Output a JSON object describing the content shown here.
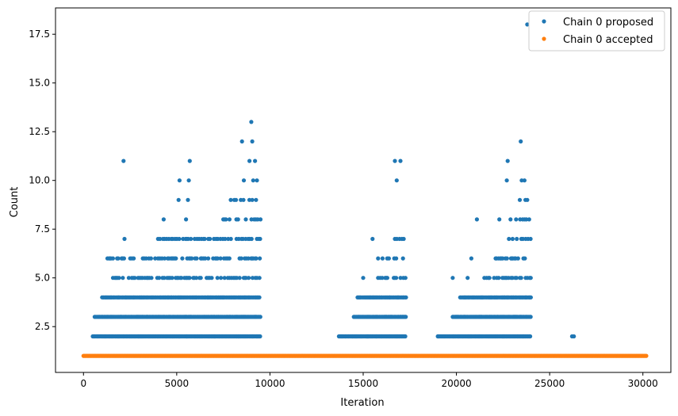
{
  "chart_data": {
    "type": "scatter",
    "xlabel": "Iteration",
    "ylabel": "Count",
    "xlim": [
      -1500,
      31500
    ],
    "ylim": [
      0.15,
      18.85
    ],
    "xticks": [
      0,
      5000,
      10000,
      15000,
      20000,
      25000,
      30000
    ],
    "yticks": [
      2.5,
      5.0,
      7.5,
      10.0,
      12.5,
      15.0,
      17.5
    ],
    "legend_position": "top-right",
    "series": [
      {
        "name": "Chain 0 proposed",
        "color": "#1f77b4",
        "segments": [
          {
            "x0": 500,
            "x1": 9500,
            "levels": [
              {
                "y": 2,
                "x0": 500,
                "x1": 9500
              },
              {
                "y": 3,
                "x0": 600,
                "x1": 9500
              },
              {
                "y": 4,
                "x0": 1000,
                "x1": 9500
              },
              {
                "y": 5,
                "x0": 1500,
                "x1": 9500
              },
              {
                "y": 6,
                "x0": 1200,
                "x1": 9500
              },
              {
                "y": 7,
                "x0": 4000,
                "x1": 9500
              },
              {
                "y": 8,
                "x0": 7500,
                "x1": 9500
              },
              {
                "y": 9,
                "x0": 7900,
                "x1": 9400
              }
            ]
          },
          {
            "x0": 13700,
            "x1": 17300,
            "levels": [
              {
                "y": 2,
                "x0": 13700,
                "x1": 17300
              },
              {
                "y": 3,
                "x0": 14500,
                "x1": 17300
              },
              {
                "y": 4,
                "x0": 14700,
                "x1": 17300
              },
              {
                "y": 5,
                "x0": 15800,
                "x1": 17300
              },
              {
                "y": 6,
                "x0": 15800,
                "x1": 17200
              },
              {
                "y": 7,
                "x0": 16700,
                "x1": 17200
              }
            ]
          },
          {
            "x0": 19000,
            "x1": 24000,
            "levels": [
              {
                "y": 2,
                "x0": 19000,
                "x1": 24000
              },
              {
                "y": 3,
                "x0": 19800,
                "x1": 24000
              },
              {
                "y": 4,
                "x0": 20200,
                "x1": 24000
              },
              {
                "y": 5,
                "x0": 21500,
                "x1": 24000
              },
              {
                "y": 6,
                "x0": 22000,
                "x1": 24000
              },
              {
                "y": 7,
                "x0": 22700,
                "x1": 24000
              },
              {
                "y": 8,
                "x0": 23200,
                "x1": 24000
              }
            ]
          }
        ],
        "points": [
          {
            "x": 2150,
            "y": 11
          },
          {
            "x": 2200,
            "y": 7
          },
          {
            "x": 3000,
            "y": 5
          },
          {
            "x": 4300,
            "y": 8
          },
          {
            "x": 5100,
            "y": 9
          },
          {
            "x": 5150,
            "y": 10
          },
          {
            "x": 5500,
            "y": 8
          },
          {
            "x": 5600,
            "y": 9
          },
          {
            "x": 5650,
            "y": 10
          },
          {
            "x": 5700,
            "y": 11
          },
          {
            "x": 6500,
            "y": 7
          },
          {
            "x": 8500,
            "y": 12
          },
          {
            "x": 8600,
            "y": 10
          },
          {
            "x": 8900,
            "y": 11
          },
          {
            "x": 9000,
            "y": 13
          },
          {
            "x": 9050,
            "y": 12
          },
          {
            "x": 9100,
            "y": 10
          },
          {
            "x": 9200,
            "y": 11
          },
          {
            "x": 9300,
            "y": 10
          },
          {
            "x": 15000,
            "y": 5
          },
          {
            "x": 15500,
            "y": 7
          },
          {
            "x": 16700,
            "y": 11
          },
          {
            "x": 16800,
            "y": 10
          },
          {
            "x": 17000,
            "y": 11
          },
          {
            "x": 19800,
            "y": 5
          },
          {
            "x": 20600,
            "y": 5
          },
          {
            "x": 20800,
            "y": 6
          },
          {
            "x": 21100,
            "y": 8
          },
          {
            "x": 22300,
            "y": 8
          },
          {
            "x": 22700,
            "y": 10
          },
          {
            "x": 22750,
            "y": 11
          },
          {
            "x": 22900,
            "y": 8
          },
          {
            "x": 23400,
            "y": 9
          },
          {
            "x": 23450,
            "y": 12
          },
          {
            "x": 23500,
            "y": 10
          },
          {
            "x": 23650,
            "y": 10
          },
          {
            "x": 23700,
            "y": 9
          },
          {
            "x": 23800,
            "y": 9
          },
          {
            "x": 23800,
            "y": 18
          },
          {
            "x": 26200,
            "y": 2
          },
          {
            "x": 26300,
            "y": 2
          }
        ]
      },
      {
        "name": "Chain 0 accepted",
        "color": "#ff7f0e",
        "constant": {
          "y": 1,
          "x0": 0,
          "x1": 30200
        }
      }
    ]
  }
}
